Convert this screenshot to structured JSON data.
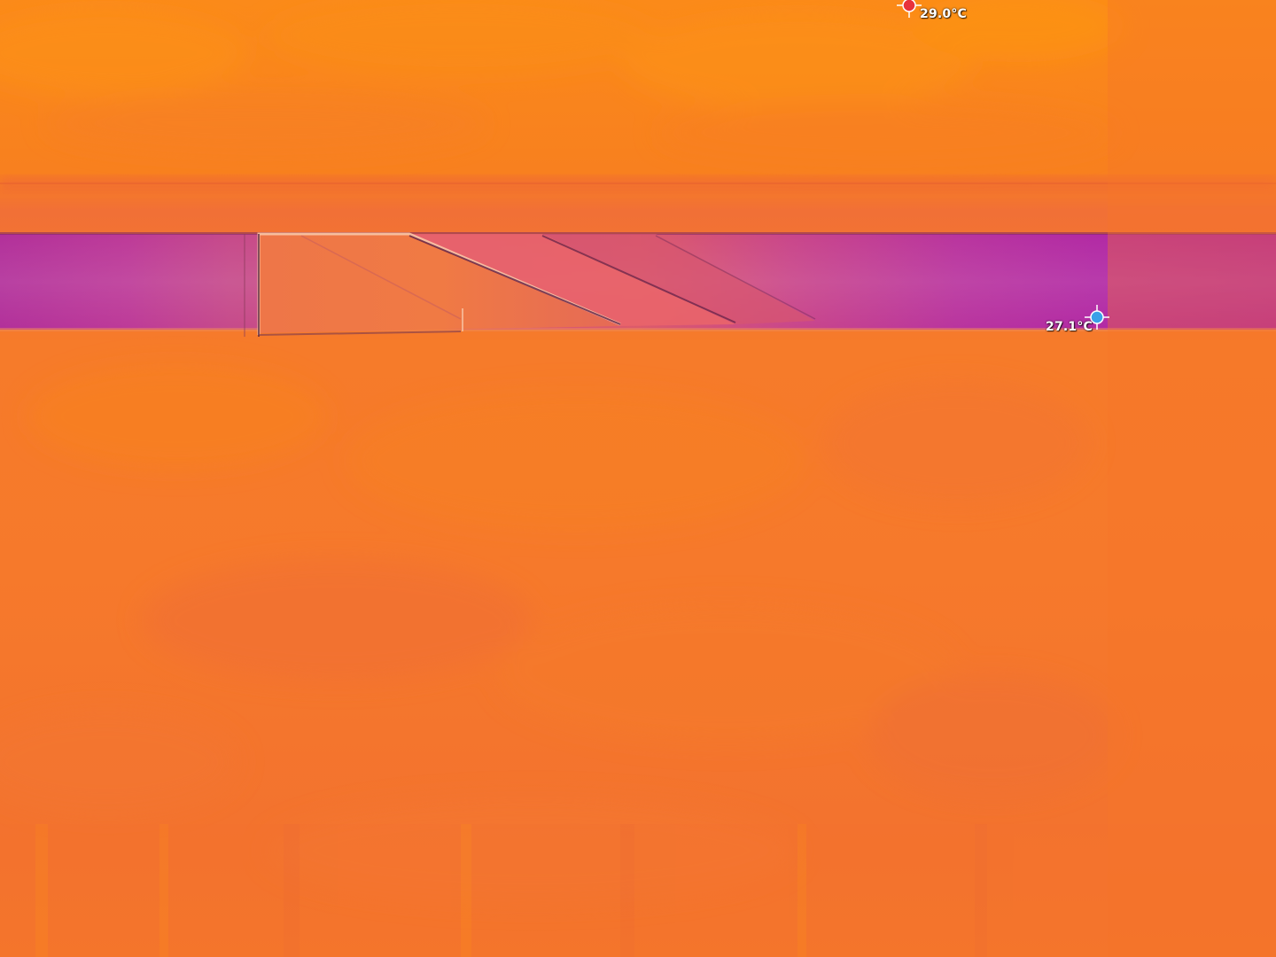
{
  "thermal_view": {
    "palette": {
      "hot_orange": "#fb8a1c",
      "warm_orange": "#f47a2a",
      "mid_orange": "#f0723a",
      "cool_purple": "#b52aa6",
      "edge_light": "#f6b58e",
      "edge_dark": "#6b2a4a",
      "hot_marker_color": "#e8323c",
      "cold_marker_color": "#3aa0e8"
    },
    "markers": {
      "hot": {
        "label": "29.0°C",
        "icon": "crosshair-icon"
      },
      "cold": {
        "label": "27.1°C",
        "icon": "crosshair-icon"
      }
    }
  }
}
